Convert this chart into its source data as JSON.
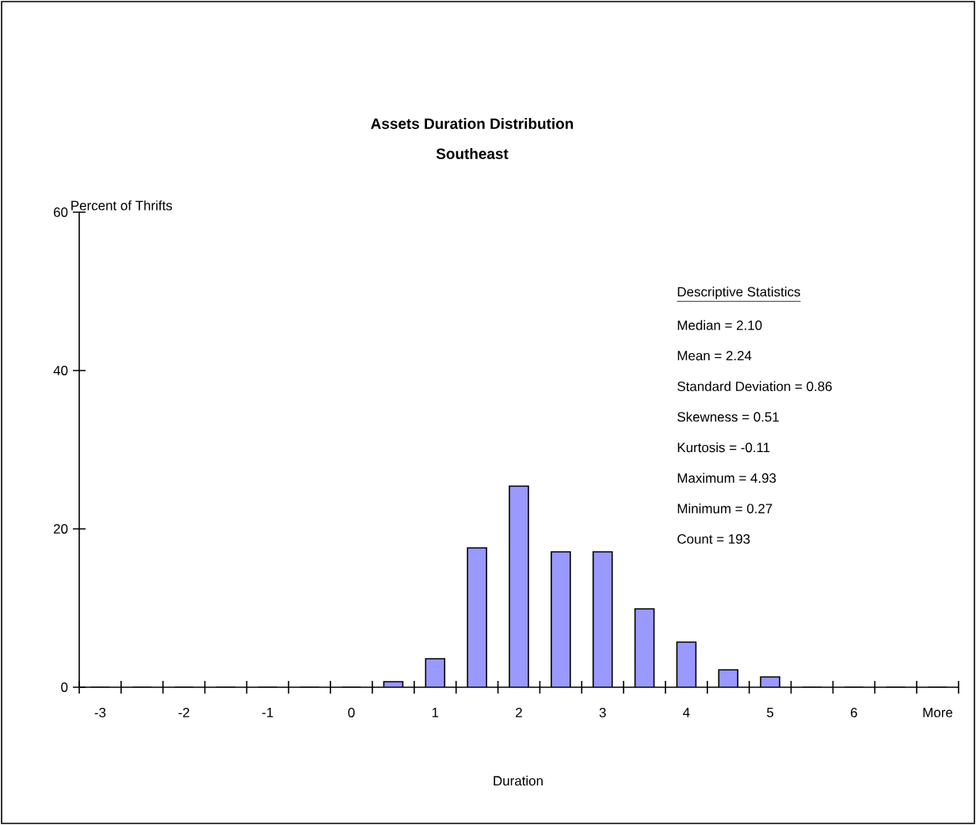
{
  "chart_data": {
    "type": "bar",
    "title": "Assets Duration Distribution",
    "subtitle": "Southeast",
    "xlabel": "Duration",
    "ylabel": "Percent of Thrifts",
    "categories": [
      "-3",
      null,
      "-2",
      null,
      "-1",
      null,
      "0",
      null,
      "1",
      null,
      "2",
      null,
      "3",
      null,
      "4",
      null,
      "5",
      null,
      "6",
      null,
      "More"
    ],
    "values": [
      0,
      0,
      0,
      0,
      0,
      0,
      0,
      0.7,
      3.6,
      17.6,
      25.4,
      17.1,
      17.1,
      9.9,
      5.7,
      2.2,
      1.3,
      0,
      0,
      0,
      0
    ],
    "color": "#9999ff",
    "ylim": [
      0,
      60
    ],
    "yticks": [
      0,
      20,
      40,
      60
    ],
    "grid": false,
    "annotations": [
      "Descriptive Statistics",
      "Median  = 2.10",
      "Mean = 2.24",
      "Standard Deviation = 0.86",
      "Skewness = 0.51",
      "Kurtosis = -0.11",
      "Maximum = 4.93",
      "Minimum =  0.27",
      "Count = 193"
    ]
  }
}
